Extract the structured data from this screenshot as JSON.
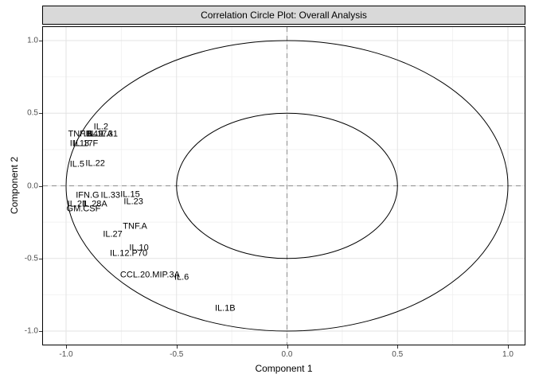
{
  "title": "Correlation Circle Plot: Overall Analysis",
  "axes": {
    "x_label": "Component 1",
    "y_label": "Component 2"
  },
  "colors": {
    "strip_fill": "#d9d9d9",
    "strip_border": "#000000",
    "panel_border": "#000000",
    "grid_major": "#e3e3e3",
    "grid_minor": "#f2f2f2",
    "reference_dashed": "#8c8c8c",
    "circle_stroke": "#000000",
    "label_text": "#000000",
    "tick_text": "#4d4d4d"
  },
  "chart_data": {
    "type": "scatter",
    "title": "Correlation Circle Plot: Overall Analysis",
    "xlabel": "Component 1",
    "ylabel": "Component 2",
    "xlim": [
      -1.1,
      1.1
    ],
    "ylim": [
      -1.1,
      1.1
    ],
    "grid": true,
    "tick_values": [
      -1.0,
      -0.5,
      0.0,
      0.5,
      1.0
    ],
    "x_tick_labels": [
      "-1.0",
      "-0.5",
      "0.0",
      "0.5",
      "1.0"
    ],
    "y_tick_labels": [
      "1.0",
      "0.5",
      "0.0",
      "-0.5",
      "-1.0"
    ],
    "y_tick_values": [
      1.0,
      0.5,
      0.0,
      -0.5,
      -1.0
    ],
    "minor_tick_values": [
      -0.75,
      -0.25,
      0.25,
      0.75
    ],
    "circles_radii": [
      1.0,
      0.5
    ],
    "reference_lines": {
      "x": 0,
      "y": 0,
      "style": "dashed"
    },
    "points": [
      {
        "label": "IL.2",
        "x": -0.842,
        "y": 0.403
      },
      {
        "label": "TNF.B",
        "x": -0.936,
        "y": 0.353
      },
      {
        "label": "IL.4",
        "x": -0.889,
        "y": 0.353
      },
      {
        "label": "IL.9",
        "x": -0.864,
        "y": 0.353
      },
      {
        "label": "IL.17A",
        "x": -0.846,
        "y": 0.353
      },
      {
        "label": "IL.31",
        "x": -0.81,
        "y": 0.353
      },
      {
        "label": "IL.13",
        "x": -0.939,
        "y": 0.288
      },
      {
        "label": "IL.17F",
        "x": -0.911,
        "y": 0.288
      },
      {
        "label": "IL.5",
        "x": -0.95,
        "y": 0.145
      },
      {
        "label": "IL.22",
        "x": -0.868,
        "y": 0.151
      },
      {
        "label": "IFN.G",
        "x": -0.903,
        "y": -0.068
      },
      {
        "label": "IL.33",
        "x": -0.799,
        "y": -0.068
      },
      {
        "label": "IL.15",
        "x": -0.71,
        "y": -0.063
      },
      {
        "label": "IL.21",
        "x": -0.95,
        "y": -0.129
      },
      {
        "label": "IL.28A",
        "x": -0.871,
        "y": -0.129
      },
      {
        "label": "IL.23",
        "x": -0.695,
        "y": -0.112
      },
      {
        "label": "GM.CSF",
        "x": -0.921,
        "y": -0.162
      },
      {
        "label": "TNF.A",
        "x": -0.688,
        "y": -0.282
      },
      {
        "label": "IL.27",
        "x": -0.789,
        "y": -0.337
      },
      {
        "label": "IL.10",
        "x": -0.67,
        "y": -0.43
      },
      {
        "label": "IL.12.P70",
        "x": -0.717,
        "y": -0.468
      },
      {
        "label": "CCL.20.MIP.3A",
        "x": -0.62,
        "y": -0.616
      },
      {
        "label": "IL.6",
        "x": -0.477,
        "y": -0.633
      },
      {
        "label": "IL.1B",
        "x": -0.28,
        "y": -0.847
      }
    ]
  }
}
